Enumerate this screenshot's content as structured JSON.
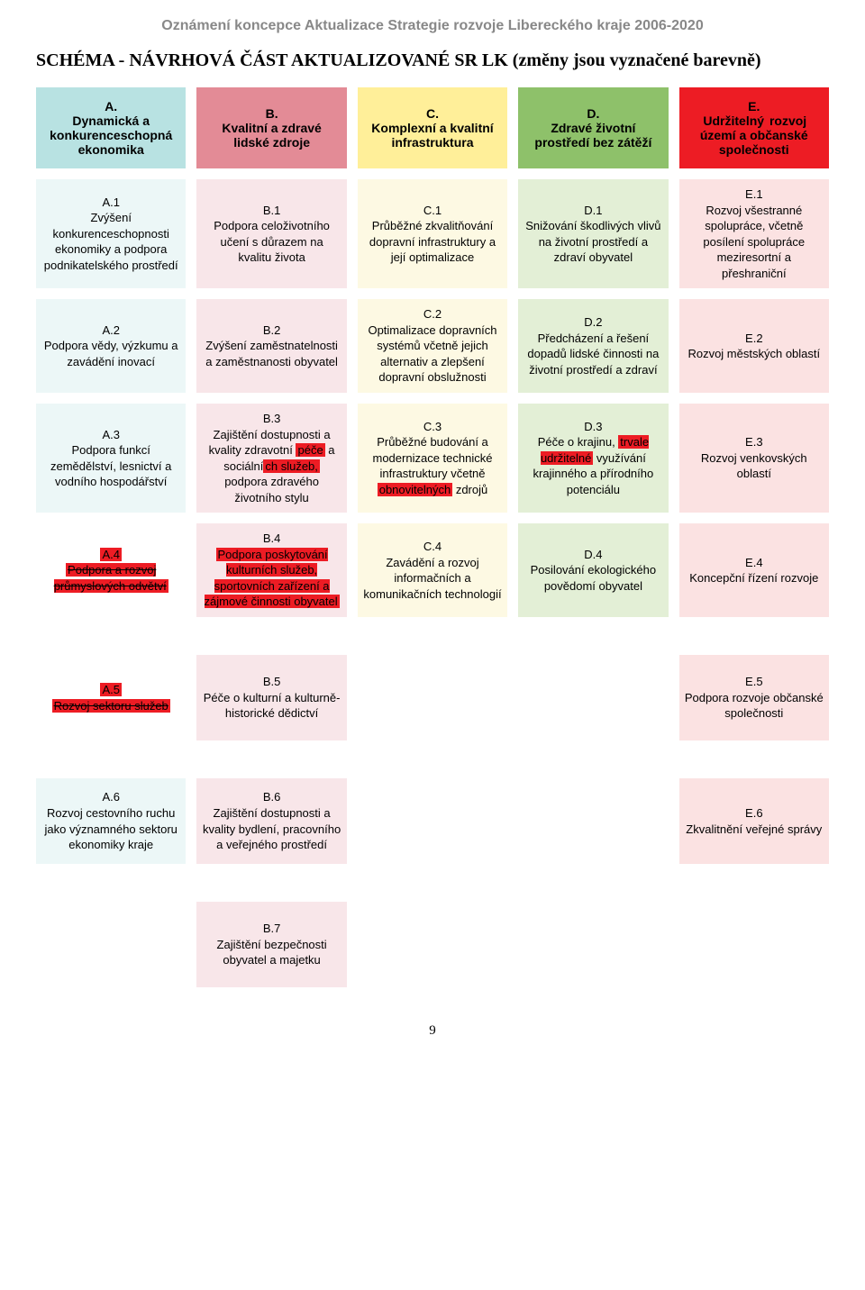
{
  "docHeader": "Oznámení koncepce Aktualizace Strategie rozvoje Libereckého kraje 2006-2020",
  "docTitle": "SCHÉMA - NÁVRHOVÁ ČÁST AKTUALIZOVANÉ SR LK (změny jsou vyznačené barevně)",
  "pageNumber": "9",
  "colors": {
    "headerA": "#b8e2e2",
    "headerB": "#e38b96",
    "headerC": "#ffef99",
    "headerD": "#8ec16a",
    "headerE": "#ed1c24",
    "cellA": "#ecf7f7",
    "cellB": "#f8e6e9",
    "cellC": "#fdf9e3",
    "cellD": "#e3efd6",
    "cellE": "#fbe2e2",
    "hlRed": "#ed1c24"
  },
  "headers": {
    "A": {
      "code": "A.",
      "text": "Dynamická a konkurenceschopná ekonomika"
    },
    "B": {
      "code": "B.",
      "text": "Kvalitní a zdravé lidské zdroje"
    },
    "C": {
      "code": "C.",
      "text": "Komplexní a kvalitní infrastruktura"
    },
    "D": {
      "code": "D.",
      "text": "Zdravé životní prostředí bez zátěží"
    },
    "E": {
      "code": "E.",
      "pre": "",
      "hl": "Udržitelný",
      "post": " rozvoj území a občanské společnosti"
    }
  },
  "rows": [
    {
      "A": {
        "code": "A.1",
        "text": "Zvýšení konkurenceschopnosti ekonomiky a podpora podnikatelského prostředí"
      },
      "B": {
        "code": "B.1",
        "text": "Podpora celoživotního učení s důrazem na kvalitu života"
      },
      "C": {
        "code": "C.1",
        "text": "Průběžné zkvalitňování dopravní infrastruktury a její optimalizace"
      },
      "D": {
        "code": "D.1",
        "text": "Snižování škodlivých vlivů na životní prostředí a zdraví obyvatel"
      },
      "E": {
        "code": "E.1",
        "text": "Rozvoj všestranné spolupráce, včetně posílení spolupráce meziresortní a přeshraniční"
      }
    },
    {
      "A": {
        "code": "A.2",
        "text": "Podpora vědy, výzkumu a zavádění inovací"
      },
      "B": {
        "code": "B.2",
        "text": "Zvýšení zaměstnatelnosti a zaměstnanosti obyvatel"
      },
      "C": {
        "code": "C.2",
        "text": "Optimalizace dopravních systémů včetně jejich alternativ a zlepšení dopravní obslužnosti"
      },
      "D": {
        "code": "D.2",
        "text": "Předcházení a řešení dopadů lidské činnosti na životní prostředí a zdraví"
      },
      "E": {
        "code": "E.2",
        "text": "Rozvoj městských oblastí"
      }
    },
    {
      "A": {
        "code": "A.3",
        "text": "Podpora funkcí zemědělství, lesnictví a vodního hospodářství"
      },
      "B": {
        "code": "B.3",
        "pre": "Zajištění dostupnosti a kvality zdravotní ",
        "hl1": "péče",
        "mid1": " a sociální",
        "hl2": "ch služeb,",
        "post": " podpora zdravého životního stylu"
      },
      "C": {
        "code": "C.3",
        "pre": "Průběžné budování a modernizace technické infrastruktury včetně ",
        "hl": "obnovitelných",
        "post": " zdrojů"
      },
      "D": {
        "code": "D.3",
        "pre": "Péče o krajinu, ",
        "hl": "trvale udržitelné",
        "post": " využívání krajinného a přírodního potenciálu"
      },
      "E": {
        "code": "E.3",
        "text": "Rozvoj venkovských oblastí"
      }
    },
    {
      "A": {
        "code": "A.4",
        "strike": "Podpora a rozvoj průmyslových odvětví",
        "allHighlighted": true
      },
      "B": {
        "code": "B.4",
        "pre": "",
        "hl1": "Podpora poskytování kulturních služeb, sportovních zařízení a zájmové činnosti obyvatel",
        "post": ""
      },
      "C": {
        "code": "C.4",
        "text": "Zavádění a rozvoj informačních a komunikačních technologií"
      },
      "D": {
        "code": "D.4",
        "text": "Posilování ekologického povědomí obyvatel"
      },
      "E": {
        "code": "E.4",
        "text": "Koncepční řízení rozvoje"
      }
    },
    {
      "A": {
        "code": "A.5",
        "strike": "Rozvoj sektoru služeb",
        "allHighlighted": true
      },
      "B": {
        "code": "B.5",
        "text": "Péče o kulturní a kulturně-historické dědictví"
      },
      "C": null,
      "D": null,
      "E": {
        "code": "E.5",
        "text": "Podpora rozvoje občanské společnosti"
      }
    },
    {
      "A": {
        "code": "A.6",
        "text": "Rozvoj cestovního ruchu jako významného sektoru ekonomiky kraje"
      },
      "B": {
        "code": "B.6",
        "text": "Zajištění dostupnosti a kvality bydlení, pracovního a veřejného prostředí"
      },
      "C": null,
      "D": null,
      "E": {
        "code": "E.6",
        "text": "Zkvalitnění veřejné správy"
      }
    },
    {
      "A": null,
      "B": {
        "code": "B.7",
        "text": "Zajištění bezpečnosti obyvatel a majetku"
      },
      "C": null,
      "D": null,
      "E": null
    }
  ]
}
